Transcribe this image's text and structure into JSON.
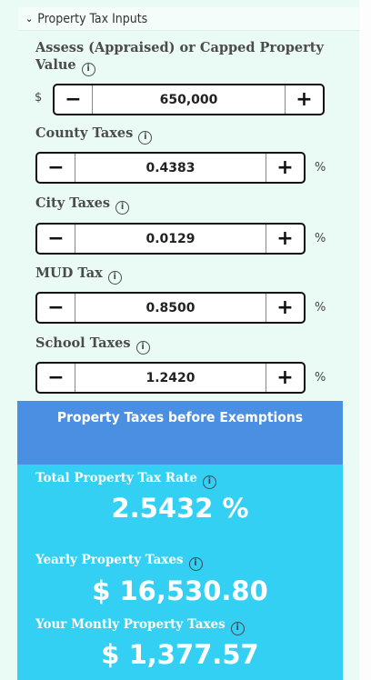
{
  "section": {
    "title": "Property Tax Inputs"
  },
  "fields": [
    {
      "label": "Assess (Appraised) or Capped Property Value",
      "value": "650,000",
      "prefix": "$",
      "suffix": ""
    },
    {
      "label": "County Taxes",
      "value": "0.4383",
      "prefix": "",
      "suffix": "%"
    },
    {
      "label": "City Taxes",
      "value": "0.0129",
      "prefix": "",
      "suffix": "%"
    },
    {
      "label": "MUD Tax",
      "value": "0.8500",
      "prefix": "",
      "suffix": "%"
    },
    {
      "label": "School Taxes",
      "value": "1.2420",
      "prefix": "",
      "suffix": "%"
    }
  ],
  "stepper": {
    "minus": "−",
    "plus": "+"
  },
  "results": {
    "header": "Property Taxes before Exemptions",
    "total_rate_label": "Total Property Tax Rate",
    "total_rate_value": "2.5432 %",
    "yearly_label": "Yearly Property Taxes",
    "yearly_value": "$ 16,530.80",
    "monthly_label": "Your Montly Property Taxes",
    "monthly_value": "$ 1,377.57"
  },
  "colors": {
    "result_header": "#4a8fe2",
    "result_body": "#33d0f3",
    "background": "#eafbf6"
  },
  "icons": {
    "chevron": "chevron-down-icon",
    "info": "info-icon"
  }
}
